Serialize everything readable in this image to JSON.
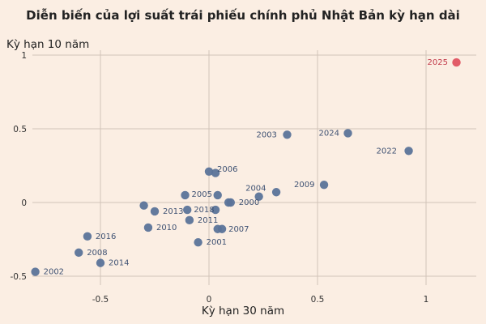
{
  "chart_data": {
    "type": "scatter",
    "title": "Diễn biến của lợi suất trái phiếu chính phủ Nhật Bản kỳ hạn dài",
    "xlabel": "Kỳ hạn 30 năm",
    "ylabel": "Kỳ hạn 10 năm",
    "xlim": [
      -0.8,
      1.2
    ],
    "ylim": [
      -0.5,
      1.0
    ],
    "xticks": [
      -0.5,
      0,
      0.5,
      1
    ],
    "yticks": [
      -0.5,
      0,
      0.5,
      1
    ],
    "xtick_labels": [
      "-0.5",
      "0",
      "0.5",
      "1"
    ],
    "ytick_labels": [
      "-0.5",
      "0",
      "0.5",
      "1"
    ],
    "grid": true,
    "colors": {
      "point": "#5b7399",
      "highlight": "#e05361",
      "label": "#3f5273",
      "highlight_label": "#c23a4a"
    },
    "points": [
      {
        "label": "2025",
        "x": 1.14,
        "y": 0.95,
        "highlight": true
      },
      {
        "label": "2024",
        "x": 0.64,
        "y": 0.47
      },
      {
        "label": "2022",
        "x": 0.92,
        "y": 0.35
      },
      {
        "label": "2003",
        "x": 0.36,
        "y": 0.46
      },
      {
        "label": "2009",
        "x": 0.53,
        "y": 0.12
      },
      {
        "label": "2006",
        "x": 0.0,
        "y": 0.21
      },
      {
        "label": "",
        "x": 0.03,
        "y": 0.2
      },
      {
        "label": "2004",
        "x": 0.31,
        "y": 0.07
      },
      {
        "label": "",
        "x": 0.23,
        "y": 0.04
      },
      {
        "label": "2005",
        "x": -0.11,
        "y": 0.05
      },
      {
        "label": "",
        "x": 0.04,
        "y": 0.05
      },
      {
        "label": "2000",
        "x": 0.1,
        "y": 0.0
      },
      {
        "label": "",
        "x": 0.09,
        "y": 0.0
      },
      {
        "label": "2018",
        "x": -0.1,
        "y": -0.05
      },
      {
        "label": "",
        "x": 0.03,
        "y": -0.05
      },
      {
        "label": "2013",
        "x": -0.25,
        "y": -0.06
      },
      {
        "label": "",
        "x": -0.3,
        "y": -0.02
      },
      {
        "label": "2011",
        "x": -0.09,
        "y": -0.12
      },
      {
        "label": "2007",
        "x": 0.06,
        "y": -0.18
      },
      {
        "label": "",
        "x": 0.04,
        "y": -0.18
      },
      {
        "label": "2010",
        "x": -0.28,
        "y": -0.17
      },
      {
        "label": "2001",
        "x": -0.05,
        "y": -0.27
      },
      {
        "label": "2016",
        "x": -0.56,
        "y": -0.23
      },
      {
        "label": "2008",
        "x": -0.6,
        "y": -0.34
      },
      {
        "label": "2014",
        "x": -0.5,
        "y": -0.41
      },
      {
        "label": "2002",
        "x": -0.8,
        "y": -0.47
      }
    ]
  }
}
